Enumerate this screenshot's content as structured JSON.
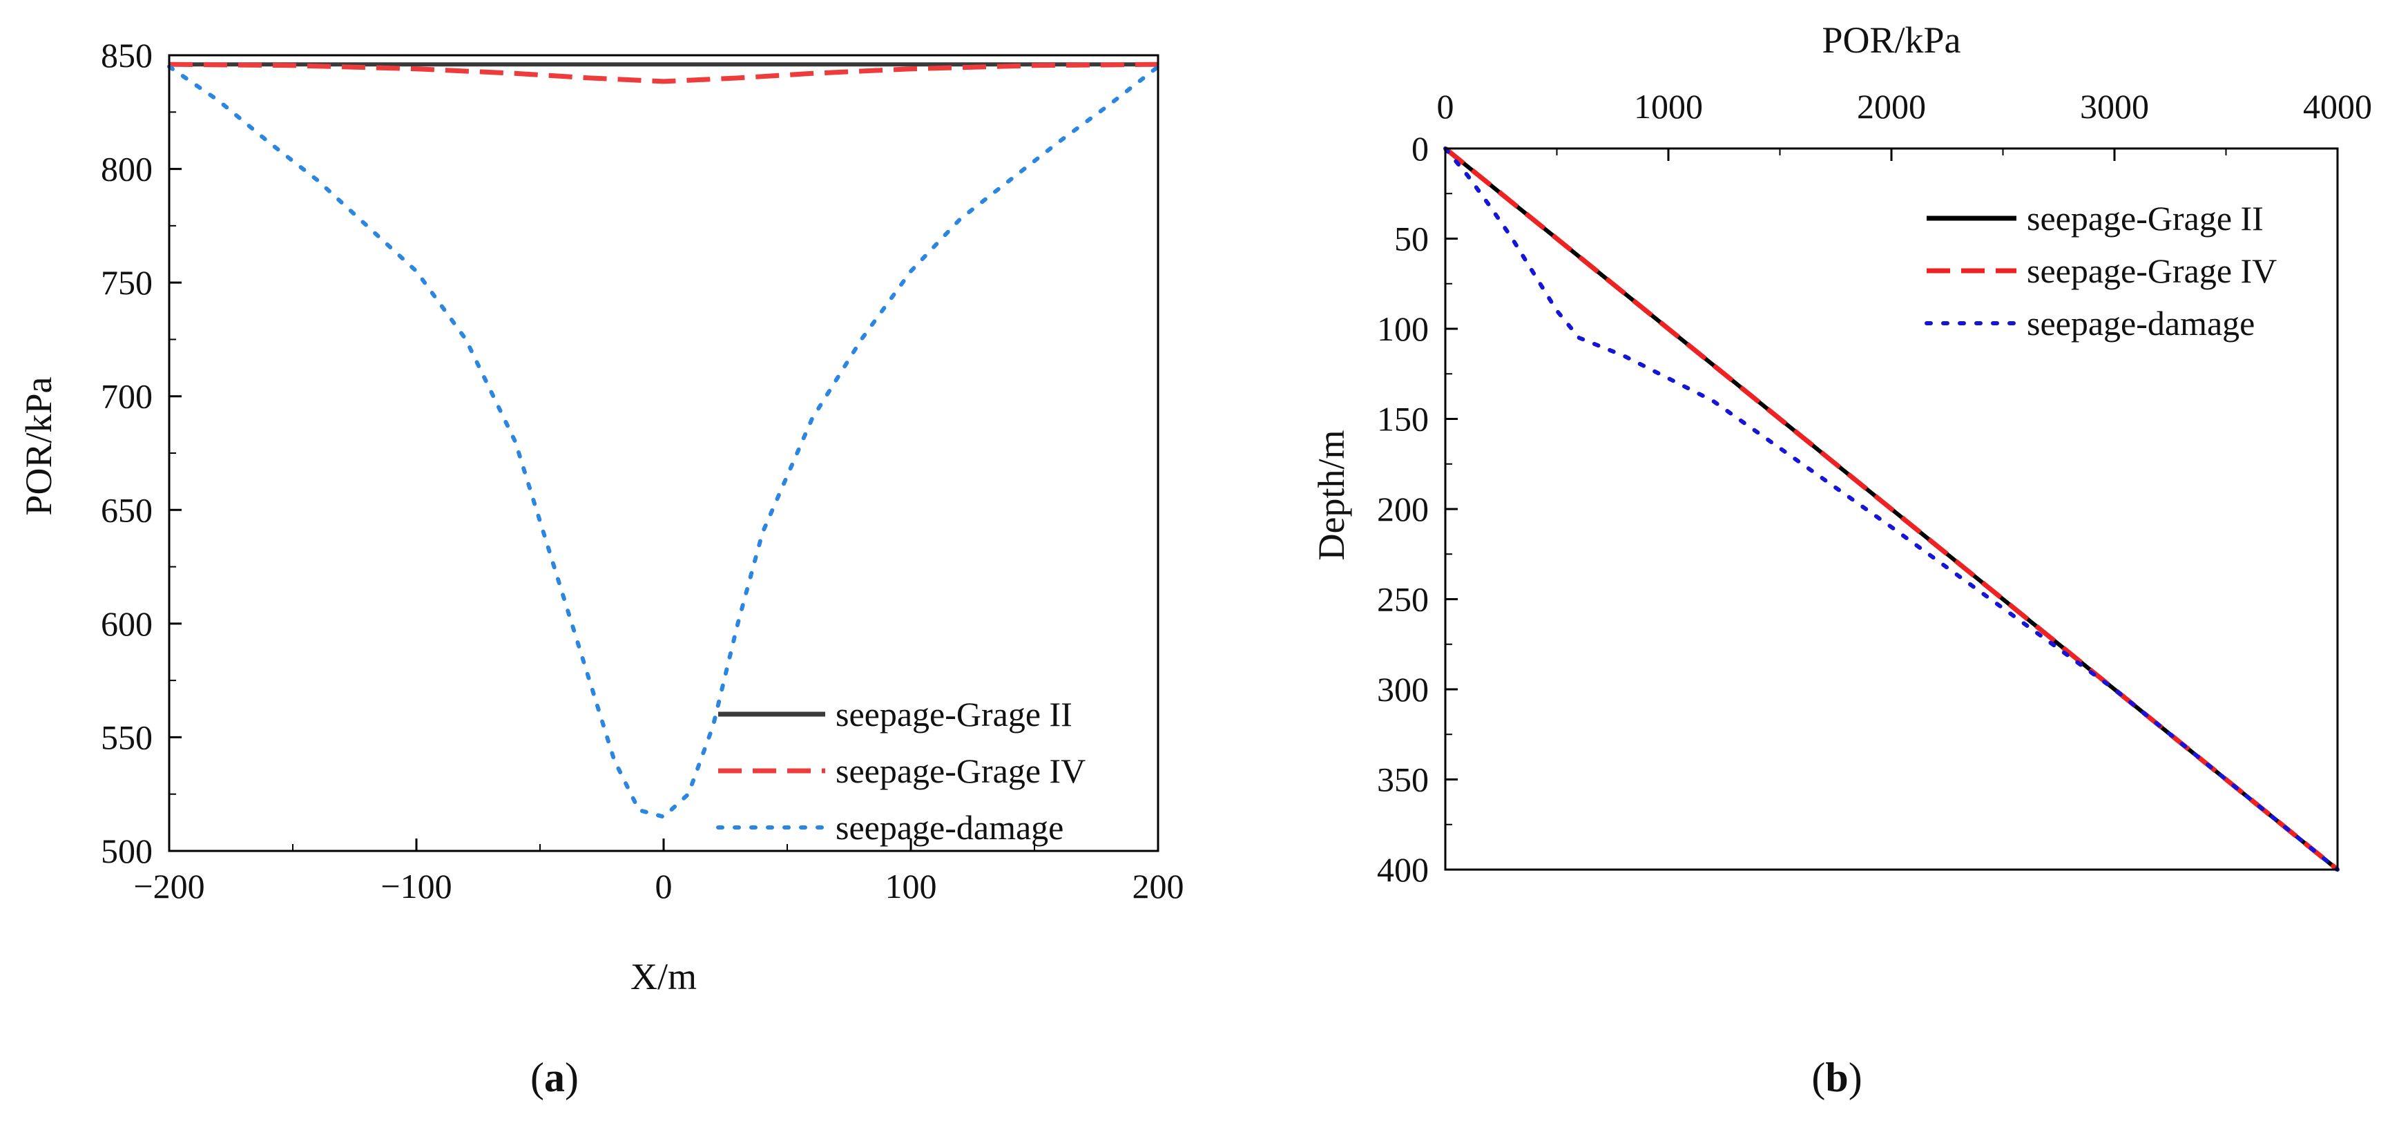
{
  "chart_data": [
    {
      "id": "a",
      "type": "line",
      "panel_label": {
        "open": "(",
        "letter": "a",
        "close": ")"
      },
      "xlabel": "X/m",
      "ylabel": "POR/kPa",
      "xlim": [
        -200,
        200
      ],
      "ylim": [
        500,
        850
      ],
      "xticks": [
        -200,
        -100,
        0,
        100,
        200
      ],
      "xtick_labels": [
        "−200",
        "−100",
        "0",
        "100",
        "200"
      ],
      "yticks": [
        500,
        550,
        600,
        650,
        700,
        750,
        800,
        850
      ],
      "ytick_labels": [
        "500",
        "550",
        "600",
        "650",
        "700",
        "750",
        "800",
        "850"
      ],
      "grid": false,
      "legend_position": "bottom-right",
      "series": [
        {
          "name": "seepage-Grage II",
          "color": "#3a3a3a",
          "style": "solid",
          "x": [
            -200,
            -100,
            0,
            100,
            200
          ],
          "y": [
            846,
            846,
            846,
            846,
            846
          ]
        },
        {
          "name": "seepage-Grage IV",
          "color": "#ee3b3b",
          "style": "dashed",
          "x": [
            -200,
            -150,
            -100,
            -60,
            -30,
            -10,
            0,
            10,
            30,
            60,
            100,
            150,
            200
          ],
          "y": [
            846,
            845.5,
            844,
            842,
            840,
            839,
            838.5,
            839,
            840,
            842,
            844,
            845.5,
            846
          ]
        },
        {
          "name": "seepage-damage",
          "color": "#2a86e0",
          "style": "dotted",
          "x": [
            -200,
            -180,
            -160,
            -140,
            -120,
            -100,
            -80,
            -60,
            -40,
            -30,
            -20,
            -10,
            0,
            10,
            20,
            30,
            40,
            60,
            80,
            100,
            120,
            140,
            160,
            180,
            200
          ],
          "y": [
            845,
            830,
            812,
            795,
            775,
            755,
            725,
            680,
            610,
            575,
            540,
            518,
            515,
            525,
            555,
            600,
            640,
            690,
            725,
            755,
            778,
            795,
            812,
            828,
            845
          ]
        }
      ]
    },
    {
      "id": "b",
      "type": "line",
      "panel_label": {
        "open": "(",
        "letter": "b",
        "close": ")"
      },
      "xlabel": "POR/kPa",
      "ylabel": "Depth/m",
      "xlim": [
        0,
        4000
      ],
      "ylim": [
        0,
        400
      ],
      "y_inverted": true,
      "x_axis_position": "top",
      "xticks": [
        0,
        1000,
        2000,
        3000,
        4000
      ],
      "xtick_labels": [
        "0",
        "1000",
        "2000",
        "3000",
        "4000"
      ],
      "yticks": [
        0,
        50,
        100,
        150,
        200,
        250,
        300,
        350,
        400
      ],
      "ytick_labels": [
        "0",
        "50",
        "100",
        "150",
        "200",
        "250",
        "300",
        "350",
        "400"
      ],
      "grid": false,
      "legend_position": "top-right",
      "series": [
        {
          "name": "seepage-Grage II",
          "color": "#000000",
          "style": "solid",
          "x": [
            0,
            4000
          ],
          "y": [
            0,
            400
          ]
        },
        {
          "name": "seepage-Grage IV",
          "color": "#ee2222",
          "style": "dashed",
          "x": [
            0,
            4000
          ],
          "y": [
            0,
            400
          ]
        },
        {
          "name": "seepage-damage",
          "color": "#1515d8",
          "style": "dotted",
          "x": [
            0,
            100,
            200,
            300,
            400,
            500,
            600,
            800,
            1200,
            2000,
            3000,
            4000
          ],
          "y": [
            0,
            15,
            32,
            50,
            70,
            90,
            105,
            115,
            140,
            210,
            300,
            400
          ]
        }
      ]
    }
  ]
}
